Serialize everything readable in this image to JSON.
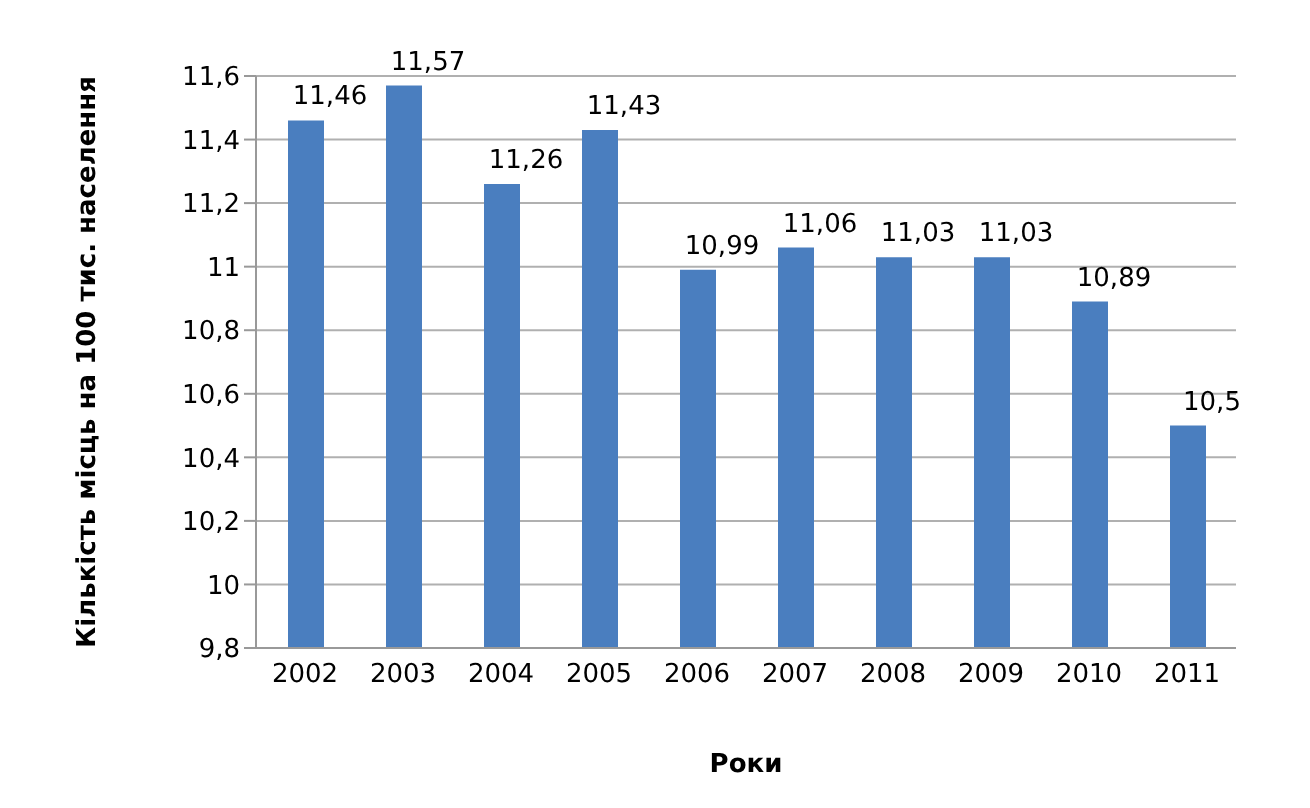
{
  "chart_data": {
    "type": "bar",
    "xlabel": "Роки",
    "ylabel": "Кількість місць на 100 тис. населення",
    "categories": [
      "2002",
      "2003",
      "2004",
      "2005",
      "2006",
      "2007",
      "2008",
      "2009",
      "2010",
      "2011"
    ],
    "values": [
      11.46,
      11.57,
      11.26,
      11.43,
      10.99,
      11.06,
      11.03,
      11.03,
      10.89,
      10.5
    ],
    "value_labels": [
      "11,46",
      "11,57",
      "11,26",
      "11,43",
      "10,99",
      "11,06",
      "11,03",
      "11,03",
      "10,89",
      "10,5"
    ],
    "color": "#4a7ebf",
    "ylim": [
      9.8,
      11.6
    ],
    "yticks": [
      {
        "value": 9.8,
        "label": "9,8"
      },
      {
        "value": 10,
        "label": "10"
      },
      {
        "value": 10.2,
        "label": "10,2"
      },
      {
        "value": 10.4,
        "label": "10,4"
      },
      {
        "value": 10.6,
        "label": "10,6"
      },
      {
        "value": 10.8,
        "label": "10,8"
      },
      {
        "value": 11,
        "label": "11"
      },
      {
        "value": 11.2,
        "label": "11,2"
      },
      {
        "value": 11.4,
        "label": "11,4"
      },
      {
        "value": 11.6,
        "label": "11,6"
      }
    ],
    "grid": "y"
  }
}
